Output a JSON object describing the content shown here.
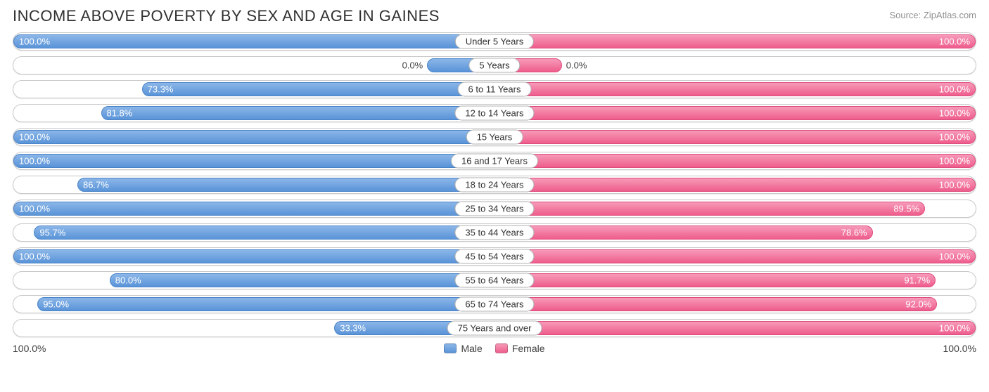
{
  "title": "INCOME ABOVE POVERTY BY SEX AND AGE IN GAINES",
  "source": "Source: ZipAtlas.com",
  "colors": {
    "male_top": "#8bb6e8",
    "male_bottom": "#5a94d8",
    "male_border": "#4a84c8",
    "female_top": "#f79ab8",
    "female_bottom": "#ee5d8c",
    "female_border": "#de4d7c",
    "row_border": "#c8c8c8",
    "text_dark": "#303030",
    "text_light": "#ffffff"
  },
  "axis": {
    "left_max_label": "100.0%",
    "right_max_label": "100.0%",
    "max": 100.0
  },
  "legend": {
    "male": "Male",
    "female": "Female"
  },
  "chart_type": "diverging-bar",
  "rows": [
    {
      "age": "Under 5 Years",
      "male": 100.0,
      "female": 100.0,
      "male_label": "100.0%",
      "female_label": "100.0%"
    },
    {
      "age": "5 Years",
      "male": 0.0,
      "female": 0.0,
      "male_label": "0.0%",
      "female_label": "0.0%",
      "zero_stub": 14
    },
    {
      "age": "6 to 11 Years",
      "male": 73.3,
      "female": 100.0,
      "male_label": "73.3%",
      "female_label": "100.0%"
    },
    {
      "age": "12 to 14 Years",
      "male": 81.8,
      "female": 100.0,
      "male_label": "81.8%",
      "female_label": "100.0%"
    },
    {
      "age": "15 Years",
      "male": 100.0,
      "female": 100.0,
      "male_label": "100.0%",
      "female_label": "100.0%"
    },
    {
      "age": "16 and 17 Years",
      "male": 100.0,
      "female": 100.0,
      "male_label": "100.0%",
      "female_label": "100.0%"
    },
    {
      "age": "18 to 24 Years",
      "male": 86.7,
      "female": 100.0,
      "male_label": "86.7%",
      "female_label": "100.0%"
    },
    {
      "age": "25 to 34 Years",
      "male": 100.0,
      "female": 89.5,
      "male_label": "100.0%",
      "female_label": "89.5%"
    },
    {
      "age": "35 to 44 Years",
      "male": 95.7,
      "female": 78.6,
      "male_label": "95.7%",
      "female_label": "78.6%"
    },
    {
      "age": "45 to 54 Years",
      "male": 100.0,
      "female": 100.0,
      "male_label": "100.0%",
      "female_label": "100.0%"
    },
    {
      "age": "55 to 64 Years",
      "male": 80.0,
      "female": 91.7,
      "male_label": "80.0%",
      "female_label": "91.7%"
    },
    {
      "age": "65 to 74 Years",
      "male": 95.0,
      "female": 92.0,
      "male_label": "95.0%",
      "female_label": "92.0%"
    },
    {
      "age": "75 Years and over",
      "male": 33.3,
      "female": 100.0,
      "male_label": "33.3%",
      "female_label": "100.0%"
    }
  ]
}
